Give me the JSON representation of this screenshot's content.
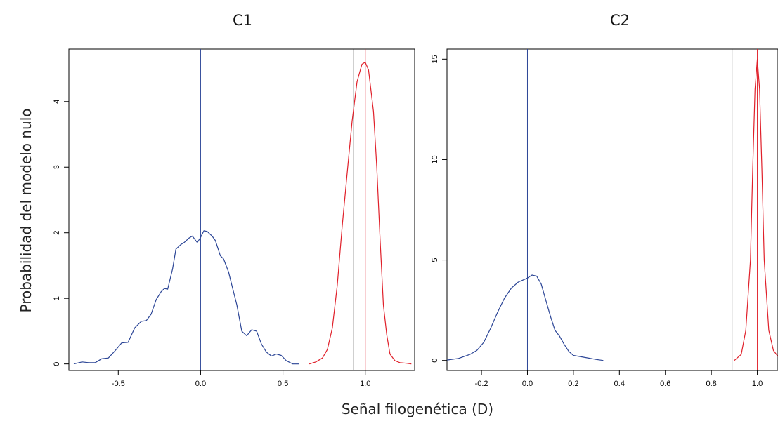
{
  "ylabel": "Probabilidad del modelo nulo",
  "xlabel": "Señal filogenética (D)",
  "colors": {
    "blue": "#2b4596",
    "red": "#e0202a",
    "black": "#000000"
  },
  "chart_data": [
    {
      "type": "line",
      "title": "C1",
      "xlim": [
        -0.8,
        1.3
      ],
      "ylim": [
        -0.1,
        4.8
      ],
      "xticks": [
        -0.5,
        0.0,
        0.5,
        1.0
      ],
      "xtick_labels": [
        "-0.5",
        "0.0",
        "0.5",
        "1.0"
      ],
      "yticks": [
        0,
        1,
        2,
        3,
        4
      ],
      "ytick_labels": [
        "0",
        "1",
        "2",
        "3",
        "4"
      ],
      "vlines": [
        {
          "x": 0.0,
          "color": "blue"
        },
        {
          "x": 0.93,
          "color": "black"
        },
        {
          "x": 1.0,
          "color": "red"
        }
      ],
      "series": [
        {
          "color": "blue",
          "x": [
            -0.77,
            -0.72,
            -0.68,
            -0.64,
            -0.6,
            -0.56,
            -0.52,
            -0.48,
            -0.44,
            -0.4,
            -0.36,
            -0.33,
            -0.3,
            -0.27,
            -0.24,
            -0.22,
            -0.2,
            -0.17,
            -0.15,
            -0.12,
            -0.1,
            -0.07,
            -0.05,
            -0.02,
            0.0,
            0.02,
            0.04,
            0.07,
            0.09,
            0.12,
            0.14,
            0.17,
            0.19,
            0.22,
            0.25,
            0.28,
            0.31,
            0.34,
            0.37,
            0.4,
            0.43,
            0.46,
            0.49,
            0.52,
            0.56,
            0.6
          ],
          "y": [
            0.0,
            0.03,
            0.02,
            0.02,
            0.08,
            0.09,
            0.2,
            0.32,
            0.33,
            0.55,
            0.65,
            0.66,
            0.76,
            0.98,
            1.1,
            1.15,
            1.14,
            1.45,
            1.75,
            1.82,
            1.85,
            1.92,
            1.95,
            1.85,
            1.93,
            2.03,
            2.02,
            1.95,
            1.88,
            1.65,
            1.6,
            1.4,
            1.2,
            0.9,
            0.5,
            0.43,
            0.52,
            0.5,
            0.3,
            0.18,
            0.12,
            0.15,
            0.13,
            0.05,
            0.0,
            0.0
          ]
        },
        {
          "color": "red",
          "x": [
            0.66,
            0.7,
            0.74,
            0.77,
            0.8,
            0.83,
            0.86,
            0.89,
            0.92,
            0.95,
            0.98,
            1.0,
            1.02,
            1.05,
            1.07,
            1.09,
            1.11,
            1.13,
            1.15,
            1.18,
            1.21,
            1.25,
            1.28
          ],
          "y": [
            0.0,
            0.03,
            0.09,
            0.22,
            0.55,
            1.2,
            2.1,
            2.9,
            3.7,
            4.3,
            4.57,
            4.6,
            4.48,
            3.85,
            3.0,
            1.9,
            0.9,
            0.45,
            0.15,
            0.05,
            0.02,
            0.01,
            0.0
          ]
        }
      ]
    },
    {
      "type": "line",
      "title": "C2",
      "xlim": [
        -0.35,
        1.09
      ],
      "ylim": [
        -0.5,
        15.5
      ],
      "xticks": [
        -0.2,
        0.0,
        0.2,
        0.4,
        0.6,
        0.8,
        1.0
      ],
      "xtick_labels": [
        "-0.2",
        "0.0",
        "0.2",
        "0.4",
        "0.6",
        "0.8",
        "1.0"
      ],
      "yticks": [
        0,
        5,
        10,
        15
      ],
      "ytick_labels": [
        "0",
        "5",
        "10",
        "15"
      ],
      "vlines": [
        {
          "x": 0.0,
          "color": "blue"
        },
        {
          "x": 0.89,
          "color": "black"
        },
        {
          "x": 1.0,
          "color": "red"
        }
      ],
      "series": [
        {
          "color": "blue",
          "x": [
            -0.35,
            -0.3,
            -0.25,
            -0.22,
            -0.19,
            -0.16,
            -0.13,
            -0.1,
            -0.07,
            -0.04,
            -0.02,
            0.0,
            0.02,
            0.04,
            0.06,
            0.08,
            0.1,
            0.12,
            0.14,
            0.16,
            0.18,
            0.2,
            0.25,
            0.3,
            0.33
          ],
          "y": [
            0.02,
            0.1,
            0.3,
            0.5,
            0.9,
            1.6,
            2.4,
            3.1,
            3.6,
            3.9,
            4.0,
            4.1,
            4.25,
            4.2,
            3.8,
            3.0,
            2.2,
            1.5,
            1.2,
            0.8,
            0.45,
            0.25,
            0.15,
            0.05,
            0.0
          ]
        },
        {
          "color": "red",
          "x": [
            0.9,
            0.93,
            0.95,
            0.97,
            0.98,
            0.99,
            1.0,
            1.01,
            1.02,
            1.03,
            1.05,
            1.07,
            1.09
          ],
          "y": [
            0.0,
            0.3,
            1.5,
            5.0,
            9.5,
            13.5,
            15.0,
            13.5,
            9.5,
            5.0,
            1.5,
            0.5,
            0.2
          ]
        }
      ]
    }
  ]
}
